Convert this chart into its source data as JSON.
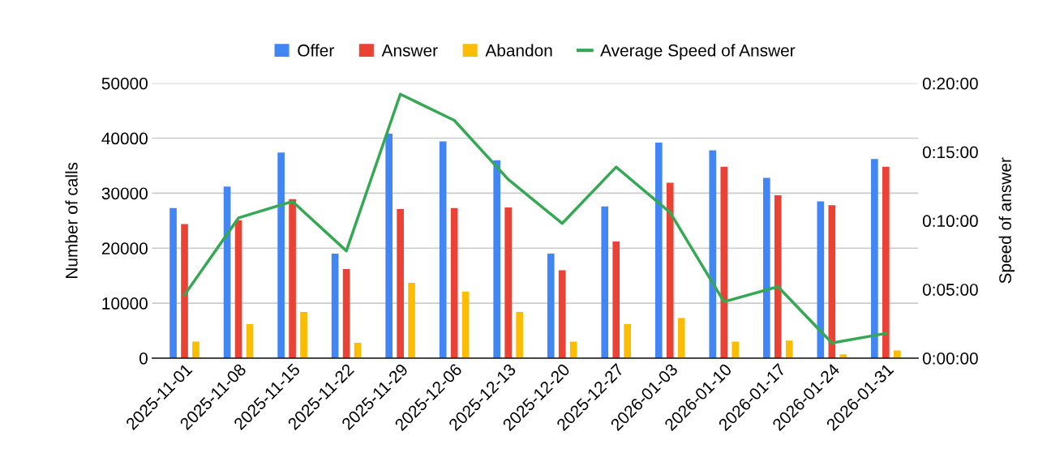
{
  "chart_data": {
    "type": "bar",
    "xlabel": null,
    "ylabel": "Number of calls",
    "y2label": "Speed of answer",
    "categories": [
      "2025-11-01",
      "2025-11-08",
      "2025-11-15",
      "2025-11-22",
      "2025-11-29",
      "2025-12-06",
      "2025-12-13",
      "2025-12-20",
      "2025-12-27",
      "2026-01-03",
      "2026-01-10",
      "2026-01-17",
      "2026-01-24",
      "2026-01-31"
    ],
    "series": [
      {
        "name": "Offer",
        "color": "#4285f4",
        "values": [
          27300,
          31200,
          37400,
          19000,
          40800,
          39400,
          36000,
          19000,
          27600,
          39200,
          37800,
          32800,
          28500,
          36200
        ]
      },
      {
        "name": "Answer",
        "color": "#ea4335",
        "values": [
          24400,
          25100,
          28900,
          16200,
          27100,
          27300,
          27400,
          16000,
          21200,
          31900,
          34800,
          29600,
          27800,
          34800
        ]
      },
      {
        "name": "Abandon",
        "color": "#fbbc04",
        "values": [
          3000,
          6200,
          8400,
          2800,
          13700,
          12100,
          8400,
          3000,
          6200,
          7300,
          3000,
          3200,
          700,
          1400
        ]
      },
      {
        "name": "Average Speed of Answer",
        "type": "line",
        "axis": "y2",
        "color": "#34a853",
        "values": [
          4.6,
          10.2,
          11.4,
          7.8,
          19.2,
          17.3,
          13.0,
          9.8,
          13.9,
          10.6,
          4.1,
          5.2,
          1.1,
          1.8
        ]
      }
    ],
    "ylim": [
      0,
      50000
    ],
    "yticks": [
      0,
      10000,
      20000,
      30000,
      40000,
      50000
    ],
    "y2lim": [
      0,
      20
    ],
    "y2ticks": [
      {
        "value": 0,
        "label": "0:00:00"
      },
      {
        "value": 5,
        "label": "0:05:00"
      },
      {
        "value": 10,
        "label": "0:10:00"
      },
      {
        "value": 15,
        "label": "0:15:00"
      },
      {
        "value": 20,
        "label": "0:20:00"
      }
    ],
    "grid": "y",
    "legend": "top",
    "marker": "none",
    "line_style": "solid"
  }
}
